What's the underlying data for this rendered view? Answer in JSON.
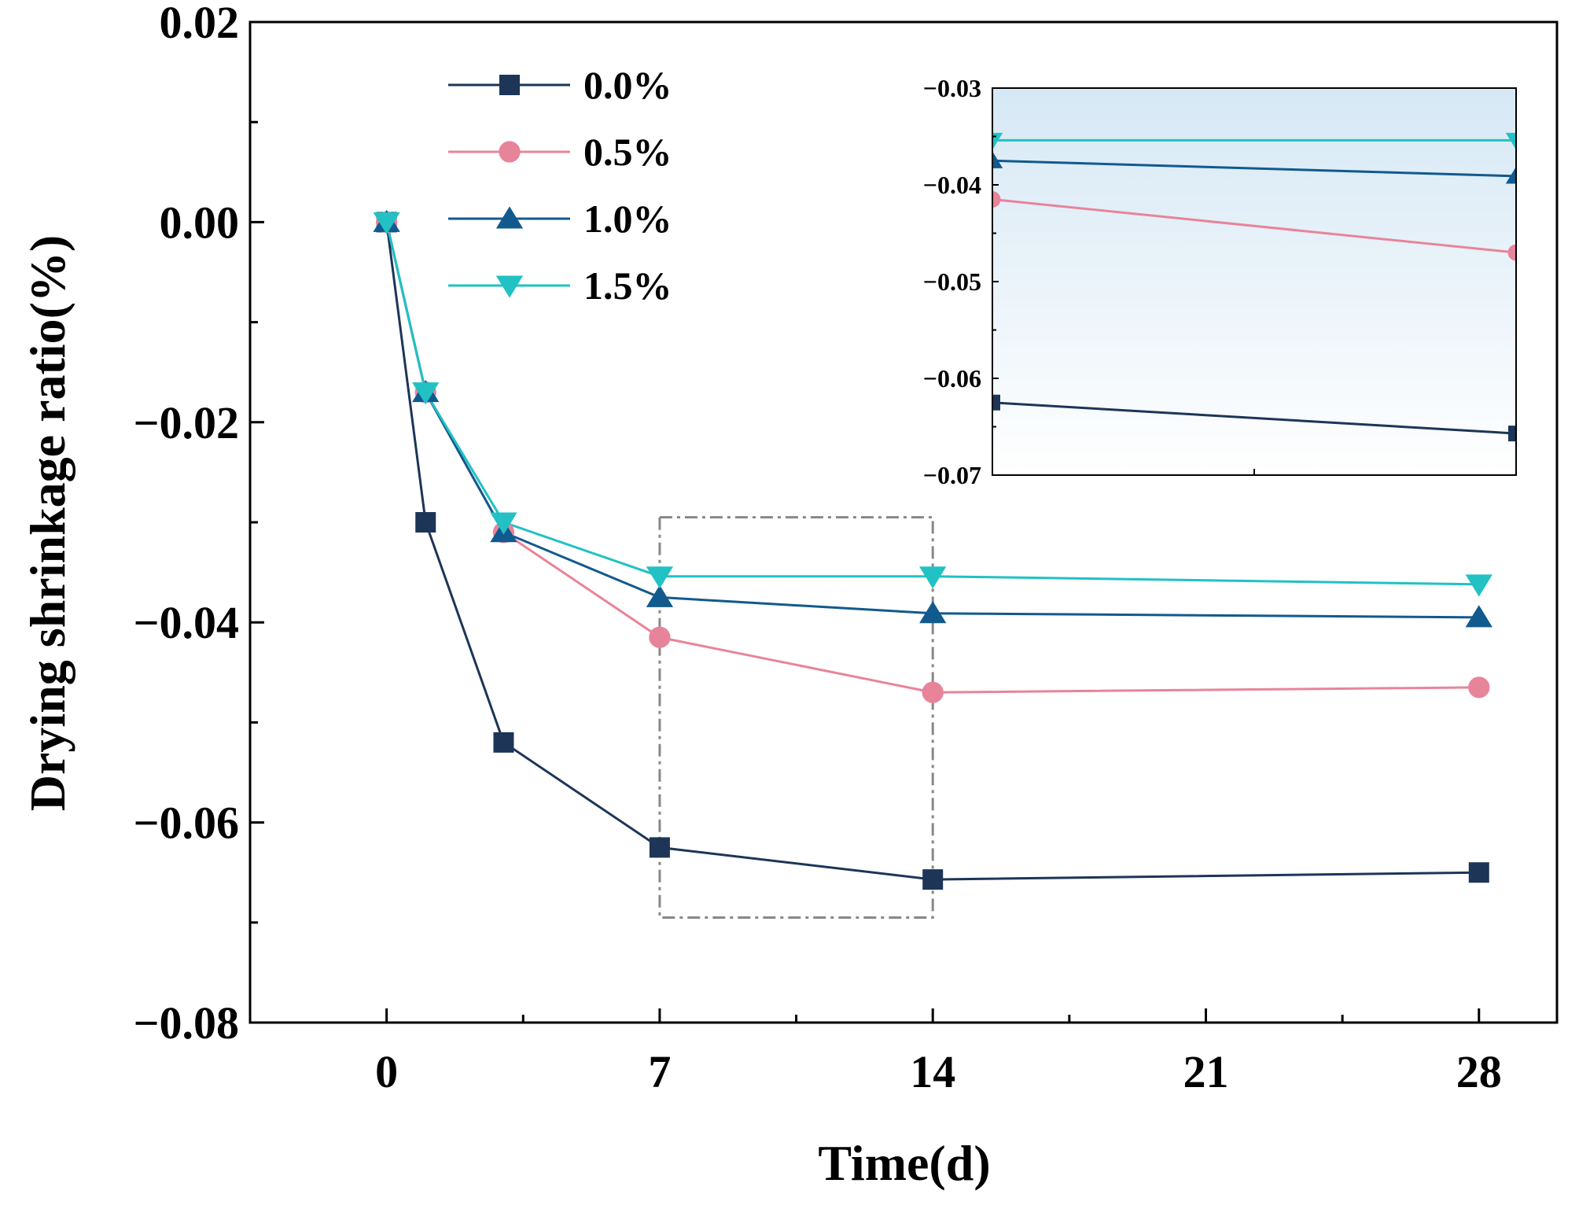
{
  "chart_data": {
    "type": "line",
    "title": "",
    "xlabel": "Time(d)",
    "ylabel": "Drying shrinkage ratio(%)",
    "xlim": [
      -3.5,
      30
    ],
    "ylim": [
      -0.08,
      0.02
    ],
    "x_ticks": [
      0,
      7,
      14,
      21,
      28
    ],
    "x_tick_labels": [
      "0",
      "7",
      "14",
      "21",
      "28"
    ],
    "y_ticks": [
      0.02,
      0.0,
      -0.02,
      -0.04,
      -0.06,
      -0.08
    ],
    "y_tick_labels": [
      "0.02",
      "0.00",
      "−0.02",
      "−0.04",
      "−0.06",
      "−0.08"
    ],
    "x": [
      0,
      1,
      3,
      7,
      14,
      28
    ],
    "series": [
      {
        "name": "0.0%",
        "color": "#1d3557",
        "marker": "square",
        "values": [
          0.0,
          -0.03,
          -0.052,
          -0.0625,
          -0.0657,
          -0.065
        ]
      },
      {
        "name": "0.5%",
        "color": "#e8849a",
        "marker": "circle",
        "values": [
          0.0,
          -0.017,
          -0.031,
          -0.0415,
          -0.047,
          -0.0465
        ]
      },
      {
        "name": "1.0%",
        "color": "#115a8e",
        "marker": "triangle-up",
        "values": [
          0.0,
          -0.017,
          -0.031,
          -0.0375,
          -0.0391,
          -0.0395
        ]
      },
      {
        "name": "1.5%",
        "color": "#21c1c4",
        "marker": "triangle-down",
        "values": [
          0.0,
          -0.017,
          -0.03,
          -0.0354,
          -0.0354,
          -0.0362
        ]
      }
    ],
    "highlight_box": {
      "x_range": [
        7,
        14
      ],
      "y_range": [
        -0.0695,
        -0.0295
      ],
      "style": "dash-dot"
    },
    "inset": {
      "description": "zoom of region between day 7 and day 14",
      "x_range": [
        7,
        14
      ],
      "ylim": [
        -0.07,
        -0.03
      ],
      "y_ticks": [
        -0.03,
        -0.04,
        -0.05,
        -0.06,
        -0.07
      ],
      "y_tick_labels": [
        "−0.03",
        "−0.04",
        "−0.05",
        "−0.06",
        "−0.07"
      ],
      "series": [
        {
          "name": "0.0%",
          "values": [
            -0.0625,
            -0.0657
          ]
        },
        {
          "name": "0.5%",
          "values": [
            -0.0415,
            -0.047
          ]
        },
        {
          "name": "1.0%",
          "values": [
            -0.0375,
            -0.0391
          ]
        },
        {
          "name": "1.5%",
          "values": [
            -0.0354,
            -0.0354
          ]
        }
      ]
    },
    "legend": {
      "position": "top-left",
      "entries": [
        "0.0%",
        "0.5%",
        "1.0%",
        "1.5%"
      ]
    }
  }
}
